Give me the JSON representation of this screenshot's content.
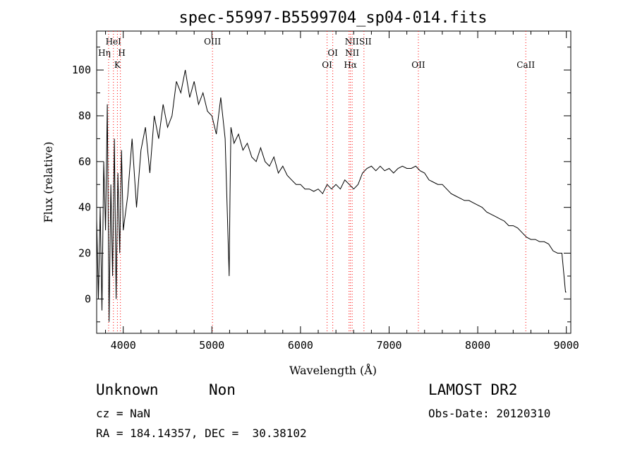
{
  "chart_data": {
    "type": "line",
    "title": "spec-55997-B5599704_sp04-014.fits",
    "xlabel": "Wavelength (Å)",
    "ylabel": "Flux (relative)",
    "xlim": [
      3700,
      9050
    ],
    "ylim": [
      -15,
      117
    ],
    "xticks": [
      4000,
      5000,
      6000,
      7000,
      8000,
      9000
    ],
    "yticks": [
      0,
      20,
      40,
      60,
      80,
      100
    ],
    "grid": false,
    "line_color": "#000000",
    "marker_color": "#ff0000",
    "series": [
      {
        "x": [
          3700,
          3720,
          3740,
          3760,
          3780,
          3800,
          3820,
          3840,
          3860,
          3880,
          3900,
          3920,
          3940,
          3960,
          3980,
          4000,
          4050,
          4100,
          4150,
          4200,
          4250,
          4300,
          4350,
          4400,
          4450,
          4500,
          4550,
          4600,
          4650,
          4700,
          4750,
          4800,
          4850,
          4900,
          4950,
          5000,
          5050,
          5100,
          5150,
          5195,
          5205,
          5215,
          5250,
          5300,
          5350,
          5400,
          5450,
          5500,
          5550,
          5600,
          5650,
          5700,
          5750,
          5800,
          5850,
          5900,
          5950,
          6000,
          6050,
          6100,
          6150,
          6200,
          6250,
          6300,
          6350,
          6400,
          6450,
          6500,
          6550,
          6600,
          6650,
          6700,
          6750,
          6800,
          6850,
          6900,
          6950,
          7000,
          7050,
          7100,
          7150,
          7200,
          7250,
          7300,
          7350,
          7400,
          7450,
          7500,
          7550,
          7600,
          7650,
          7700,
          7750,
          7800,
          7850,
          7900,
          7950,
          8000,
          8050,
          8100,
          8150,
          8200,
          8250,
          8300,
          8350,
          8400,
          8450,
          8500,
          8550,
          8600,
          8650,
          8700,
          8750,
          8800,
          8850,
          8900,
          8950,
          8990,
          9000
        ],
        "y": [
          35,
          0,
          40,
          -5,
          60,
          30,
          85,
          -10,
          50,
          10,
          70,
          0,
          55,
          20,
          65,
          30,
          45,
          70,
          40,
          65,
          75,
          55,
          80,
          70,
          85,
          75,
          80,
          95,
          90,
          100,
          88,
          95,
          85,
          90,
          82,
          80,
          72,
          88,
          70,
          10,
          45,
          75,
          68,
          72,
          65,
          68,
          62,
          60,
          66,
          60,
          58,
          62,
          55,
          58,
          54,
          52,
          50,
          50,
          48,
          48,
          47,
          48,
          46,
          50,
          48,
          50,
          48,
          52,
          50,
          48,
          50,
          55,
          57,
          58,
          56,
          58,
          56,
          57,
          55,
          57,
          58,
          57,
          57,
          58,
          56,
          55,
          52,
          51,
          50,
          50,
          48,
          46,
          45,
          44,
          43,
          43,
          42,
          41,
          40,
          38,
          37,
          36,
          35,
          34,
          32,
          32,
          31,
          29,
          27,
          26,
          26,
          25,
          25,
          24,
          21,
          20,
          20,
          3,
          3
        ]
      }
    ],
    "line_markers": [
      {
        "label": "HeI",
        "x": 3889
      },
      {
        "label": "Hη",
        "x": 3835
      },
      {
        "label": "H",
        "x": 3968
      },
      {
        "label": "K",
        "x": 3934
      },
      {
        "label": "OIII",
        "x": 5007
      },
      {
        "label": "OI",
        "x": 6300
      },
      {
        "label": "OI",
        "x": 6364
      },
      {
        "label": "NII",
        "x": 6548
      },
      {
        "label": "Hα",
        "x": 6563
      },
      {
        "label": "NII",
        "x": 6583
      },
      {
        "label": "SII",
        "x": 6716
      },
      {
        "label": "OII",
        "x": 7330
      },
      {
        "label": "CaII",
        "x": 8542
      }
    ]
  },
  "info": {
    "class": "Unknown",
    "subclass": "Non",
    "survey": "LAMOST DR2",
    "cz": "cz = NaN",
    "obs_date": "Obs-Date: 20120310",
    "radec": "RA = 184.14357, DEC =  30.38102"
  }
}
